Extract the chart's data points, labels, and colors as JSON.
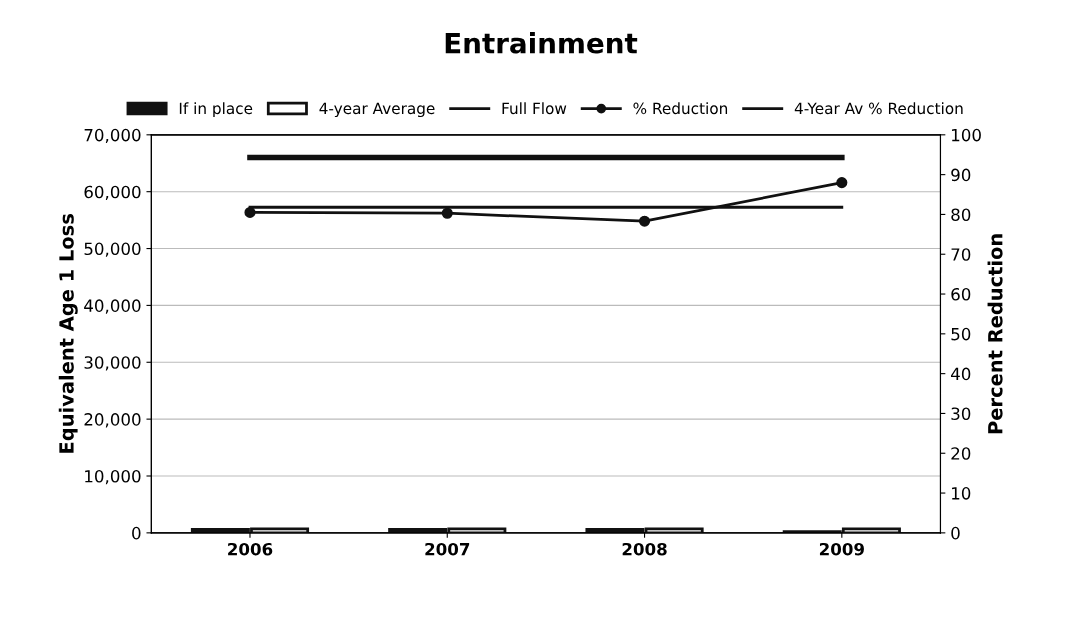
{
  "chart_data": {
    "type": "bar",
    "title": "Entrainment",
    "ylabel": "Equivalent Age 1 Loss",
    "y2label": "Percent Reduction",
    "categories": [
      "2006",
      "2007",
      "2008",
      "2009"
    ],
    "series": [
      {
        "name": "If in place",
        "color": "#111111",
        "values": [
          600,
          600,
          600,
          200
        ]
      },
      {
        "name": "4-year Average",
        "color": "#ffffff",
        "values": [
          700,
          700,
          700,
          700
        ]
      },
      {
        "name": "Full Flow",
        "type": "line",
        "color": "#111111",
        "values": [
          66000,
          66000,
          66000,
          66000
        ],
        "marker": "none"
      },
      {
        "name": "% Reduction",
        "type": "line",
        "color": "#111111",
        "axis": "y2",
        "values": [
          80.5,
          80.3,
          78.3,
          88
        ],
        "marker": "circle"
      },
      {
        "name": "4-Year Av % Reduction",
        "type": "line",
        "color": "#111111",
        "axis": "y2",
        "values": [
          81.8,
          81.8,
          81.8,
          81.8
        ],
        "marker": "none"
      }
    ],
    "ylim": [
      0,
      70000
    ],
    "yticks": [
      {
        "value": 0,
        "label": "0"
      },
      {
        "value": 10000,
        "label": "10,000"
      },
      {
        "value": 20000,
        "label": "20,000"
      },
      {
        "value": 30000,
        "label": "30,000"
      },
      {
        "value": 40000,
        "label": "40,000"
      },
      {
        "value": 50000,
        "label": "50,000"
      },
      {
        "value": 60000,
        "label": "60,000"
      },
      {
        "value": 70000,
        "label": "70,000"
      }
    ],
    "y2lim": [
      0,
      100
    ],
    "y2ticks": [
      0,
      10,
      20,
      30,
      40,
      50,
      60,
      70,
      80,
      90,
      100
    ],
    "grid": "y",
    "legend": "top"
  }
}
